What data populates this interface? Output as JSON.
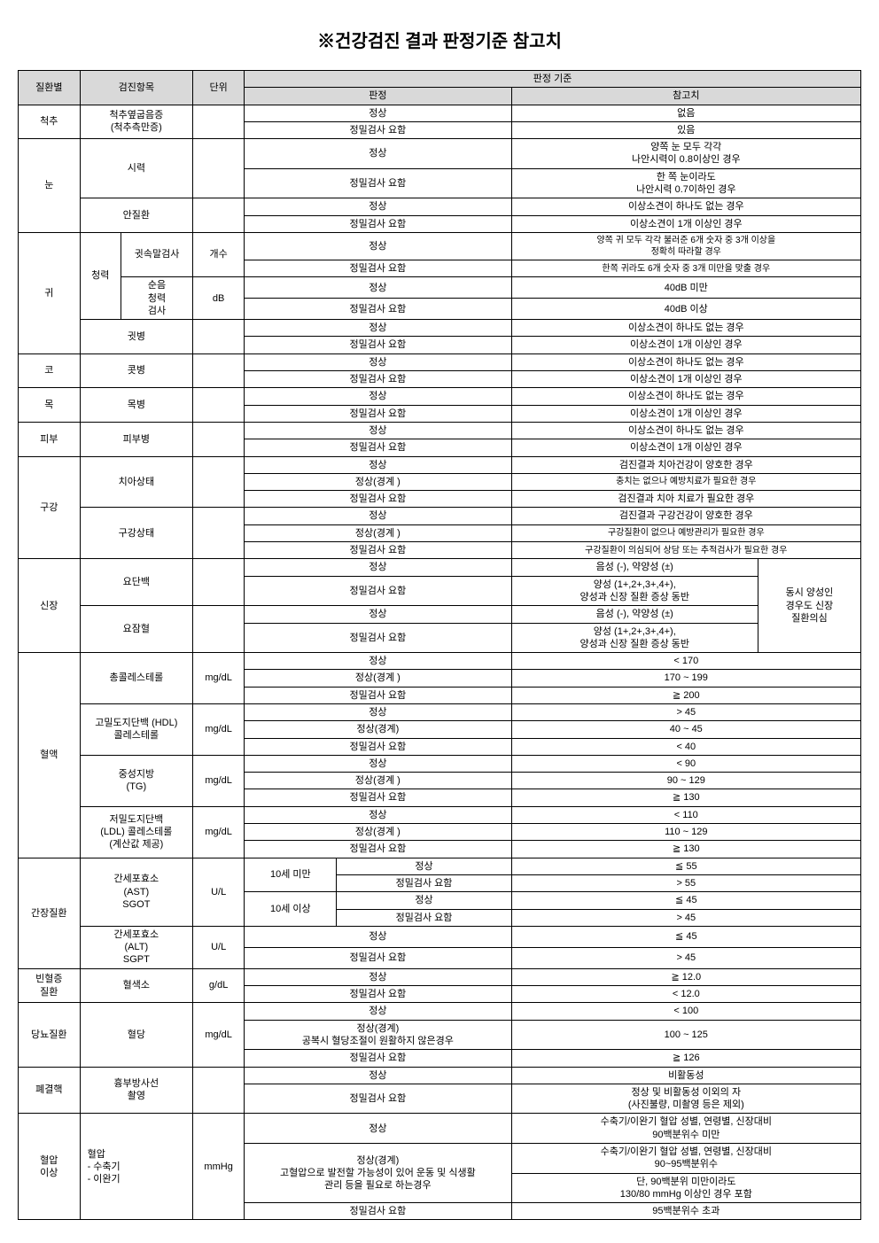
{
  "title": "※건강검진 결과 판정기준 참고치",
  "header": {
    "disease": "질환별",
    "item": "검진항목",
    "unit": "단위",
    "criteria": "판정 기준",
    "judgment": "판정",
    "reference": "참고치"
  },
  "labels": {
    "normal": "정상",
    "detail": "정밀검사 요함",
    "normal_border": "정상(경계)",
    "normal_border_sp": "정상(경계 )"
  },
  "spine": {
    "disease": "척추",
    "item": "척추옆굽음증\n(척추측만증)",
    "ref_normal": "없음",
    "ref_detail": "있음"
  },
  "eye": {
    "disease": "눈",
    "item_vision": "시력",
    "vision_ref_normal": "양쪽 눈 모두 각각\n나안시력이 0.8이상인 경우",
    "vision_ref_detail": "한 쪽 눈이라도\n나안시력 0.7이하인 경우",
    "item_ocular": "안질환",
    "ocular_ref_normal": "이상소견이 하나도 없는 경우",
    "ocular_ref_detail": "이상소견이 1개 이상인 경우"
  },
  "ear": {
    "disease": "귀",
    "hearing": "청력",
    "whisper": "귓속말검사",
    "whisper_unit": "개수",
    "whisper_ref_normal": "양쪽 귀 모두 각각 불러준 6개 숫자 중 3개 이상을\n정확히 따라할 경우",
    "whisper_ref_detail": "한쪽 귀라도 6개 숫자 중 3개  미만을 맞출 경우",
    "pure": "순음\n청력\n검사",
    "pure_unit": "dB",
    "pure_ref_normal": "40dB 미만",
    "pure_ref_detail": "40dB 이상",
    "item_disease": "귓병",
    "disease_ref_normal": "이상소견이 하나도 없는 경우",
    "disease_ref_detail": "이상소견이 1개 이상인 경우"
  },
  "nose": {
    "disease": "코",
    "item": "콧병",
    "ref_normal": "이상소견이 하나도 없는 경우",
    "ref_detail": "이상소견이 1개 이상인 경우"
  },
  "throat": {
    "disease": "목",
    "item": "목병",
    "ref_normal": "이상소견이 하나도 없는 경우",
    "ref_detail": "이상소견이 1개 이상인 경우"
  },
  "skin": {
    "disease": "피부",
    "item": "피부병",
    "ref_normal": "이상소견이 하나도 없는 경우",
    "ref_detail": "이상소견이 1개 이상인 경우"
  },
  "oral": {
    "disease": "구강",
    "item_teeth": "치아상태",
    "teeth_normal": "검진결과 치아건강이 양호한 경우",
    "teeth_border": "충치는 없으나 예방치료가 필요한 경우",
    "teeth_detail": "검진결과 치아 치료가 필요한 경우",
    "item_cavity": "구강상태",
    "cavity_normal": "검진결과 구강건강이 양호한 경우",
    "cavity_border": "구강질환이 없으나 예방관리가 필요한 경우",
    "cavity_detail": "구강질환이 의심되어 상담 또는 추적검사가 필요한 경우"
  },
  "kidney": {
    "disease": "신장",
    "item_protein": "요단백",
    "protein_normal": "음성 (-), 약양성 (±)",
    "protein_detail": "양성 (1+,2+,3+,4+),\n양성과 신장 질환 증상 동반",
    "item_blood": "요잠혈",
    "blood_normal": "음성 (-), 약양성 (±)",
    "blood_detail": "양성 (1+,2+,3+,4+),\n양성과 신장 질환 증상 동반",
    "side_note": "동시 양성인\n경우도 신장\n질환의심"
  },
  "blood": {
    "disease": "혈액",
    "item_tc": "총콜레스테롤",
    "tc_unit": "mg/dL",
    "tc_normal": "< 170",
    "tc_border": "170 ~ 199",
    "tc_detail": "≧ 200",
    "item_hdl": "고밀도지단백 (HDL)\n콜레스테롤",
    "hdl_unit": "mg/dL",
    "hdl_normal": "> 45",
    "hdl_border": "40 ~ 45",
    "hdl_detail": "< 40",
    "item_tg": "중성지방\n(TG)",
    "tg_unit": "mg/dL",
    "tg_normal": "< 90",
    "tg_border": "90 ~ 129",
    "tg_detail": "≧ 130",
    "item_ldl": "저밀도지단백\n(LDL) 콜레스테롤\n(계산값 제공)",
    "ldl_unit": "mg/dL",
    "ldl_normal": "< 110",
    "ldl_border": "110 ~ 129",
    "ldl_detail": "≧ 130"
  },
  "liver": {
    "disease": "간장질환",
    "item_ast": "간세포효소\n(AST)\nSGOT",
    "ast_unit": "U/L",
    "age_under10": "10세 미만",
    "age_over10": "10세 이상",
    "ast_u10_normal": "≦ 55",
    "ast_u10_detail": "> 55",
    "ast_o10_normal": "≦ 45",
    "ast_o10_detail": "> 45",
    "item_alt": "간세포효소\n(ALT)\nSGPT",
    "alt_unit": "U/L",
    "alt_normal": "≦ 45",
    "alt_detail": "> 45"
  },
  "anemia": {
    "disease": "빈혈증\n질환",
    "item": "혈색소",
    "unit": "g/dL",
    "normal": "≧ 12.0",
    "detail": "< 12.0"
  },
  "diabetes": {
    "disease": "당뇨질환",
    "item": "혈당",
    "unit": "mg/dL",
    "normal": "< 100",
    "border_j": "정상(경계)\n공복시 혈당조절이 원활하지 않은경우",
    "border": "100 ~ 125",
    "detail": "≧ 126"
  },
  "tb": {
    "disease": "폐결핵",
    "item": "흉부방사선\n촬영",
    "normal": "비활동성",
    "detail": "정상 및 비활동성 이외의 자\n(사진불량, 미촬영 등은 제외)"
  },
  "bp": {
    "disease": "혈압\n이상",
    "item": "혈압\n- 수축기\n- 이완기",
    "unit": "mmHg",
    "normal": "수축기/이완기 혈압 성별, 연령별, 신장대비\n90백분위수 미만",
    "border_j": "정상(경계)\n고혈압으로 발전할 가능성이 있어 운동 및 식생활\n관리 등을 필요로 하는경우",
    "border1": "수축기/이완기 혈압 성별, 연령별, 신장대비\n90~95백분위수",
    "border2": "단, 90백분위 미만이라도\n130/80 mmHg 이상인 경우 포함",
    "detail": "95백분위수 초과"
  }
}
